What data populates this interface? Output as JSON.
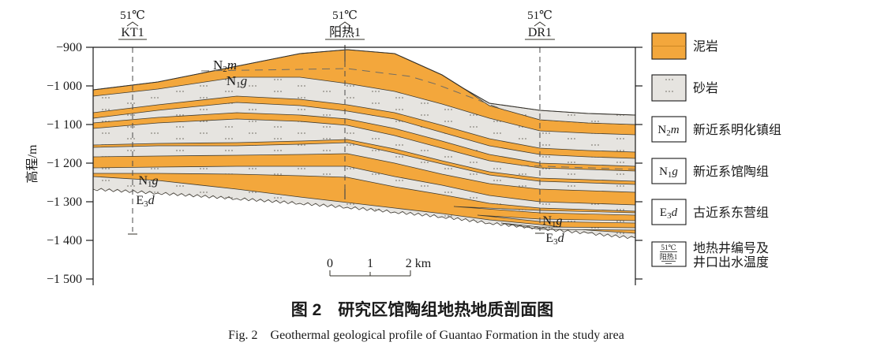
{
  "figure": {
    "caption_zh": "图 2　研究区馆陶组地热地质剖面图",
    "caption_en": "Fig. 2　Geothermal geological profile of Guantao Formation in the study area"
  },
  "axis": {
    "title": "高程/m",
    "ticks": [
      "−900",
      "−1 000",
      "−1 100",
      "−1 200",
      "−1 300",
      "−1 400",
      "−1 500"
    ]
  },
  "scalebar": {
    "t0": "0",
    "t1": "1",
    "t2": "2 km"
  },
  "wells": [
    {
      "temp": "51℃",
      "name": "KT1"
    },
    {
      "temp": "51℃",
      "name": "阳热1"
    },
    {
      "temp": "51℃",
      "name": "DR1"
    }
  ],
  "strata": {
    "n2m": {
      "pre": "N",
      "sub": "2",
      "post": "m"
    },
    "n1g": {
      "pre": "N",
      "sub": "1",
      "post": "g"
    },
    "e3d": {
      "pre": "E",
      "sub": "3",
      "post": "d"
    }
  },
  "legend": {
    "items": [
      {
        "label": "泥岩"
      },
      {
        "label": "砂岩"
      },
      {
        "label": "新近系明化镇组"
      },
      {
        "label": "新近系馆陶组"
      },
      {
        "label": "古近系东营组"
      },
      {
        "label": "地热井编号及",
        "label2": "井口出水温度"
      }
    ],
    "well_symbol": {
      "temp": "51℃",
      "name": "阳热1"
    }
  },
  "colors": {
    "mudstone": "#F3A73C",
    "sandstone": "#E6E4E0",
    "boundary": "#3F3B30"
  }
}
